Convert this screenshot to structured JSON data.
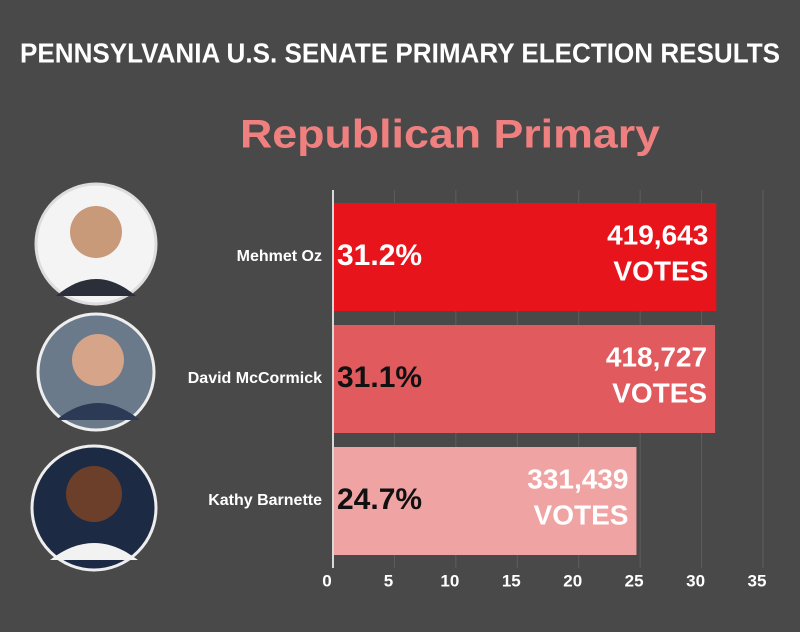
{
  "chart_data": {
    "type": "bar",
    "orientation": "horizontal",
    "title": "PENNSYLVANIA U.S. SENATE PRIMARY ELECTION RESULTS",
    "subtitle": "Republican Primary",
    "categories": [
      "Mehmet Oz",
      "David McCormick",
      "Kathy Barnette"
    ],
    "values": [
      31.2,
      31.1,
      24.7
    ],
    "value_labels": [
      "31.2%",
      "31.1%",
      "24.7%"
    ],
    "vote_labels": [
      "419,643",
      "418,727",
      "331,439"
    ],
    "vote_unit": "VOTES",
    "colors": [
      "#e8141c",
      "#e05a5e",
      "#f0a3a3"
    ],
    "xlim": [
      0,
      35
    ],
    "xticks": [
      0,
      5,
      10,
      15,
      20,
      25,
      30,
      35
    ],
    "grid": true
  }
}
